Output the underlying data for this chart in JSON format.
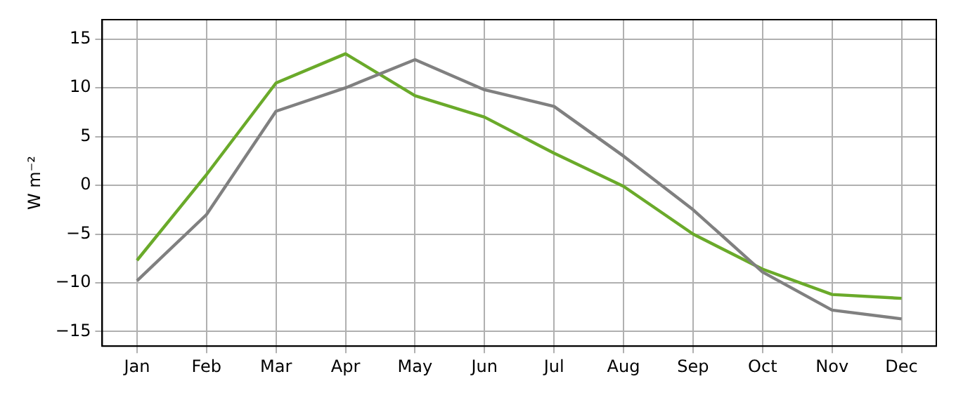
{
  "chart_data": {
    "type": "line",
    "ylabel": "W m⁻²",
    "categories": [
      "Jan",
      "Feb",
      "Mar",
      "Apr",
      "May",
      "Jun",
      "Jul",
      "Aug",
      "Sep",
      "Oct",
      "Nov",
      "Dec"
    ],
    "series": [
      {
        "color": "#808080",
        "values": [
          -9.8,
          -3.0,
          7.6,
          10.0,
          12.9,
          9.8,
          8.1,
          3.0,
          -2.5,
          -8.9,
          -12.8,
          -13.7
        ]
      },
      {
        "color": "#6aaa2a",
        "values": [
          -7.7,
          1.1,
          10.5,
          13.5,
          9.2,
          7.0,
          3.3,
          -0.1,
          -5.0,
          -8.6,
          -11.2,
          -11.6
        ]
      }
    ],
    "ylim": [
      -16.5,
      17
    ],
    "yticks": [
      -15,
      -10,
      -5,
      0,
      5,
      10,
      15
    ],
    "grid": true,
    "legend": false,
    "marker": "none",
    "line_style": "solid"
  }
}
